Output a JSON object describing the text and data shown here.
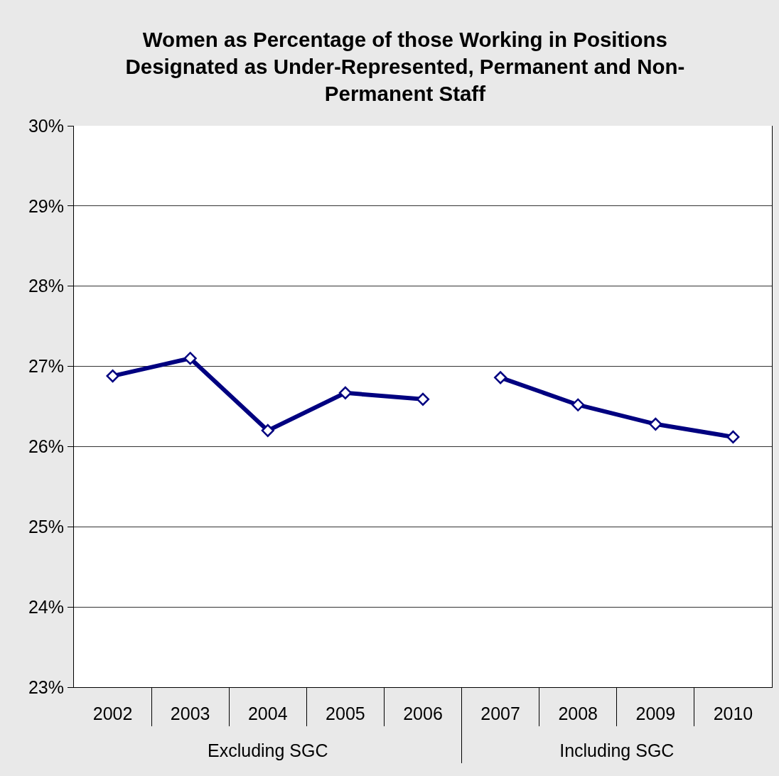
{
  "chart_data": {
    "type": "line",
    "title": "Women as Percentage of those Working in Positions Designated as Under-Represented, Permanent and Non-Permanent Staff",
    "categories": [
      "2002",
      "2003",
      "2004",
      "2005",
      "2006",
      "2007",
      "2008",
      "2009",
      "2010"
    ],
    "series": [
      {
        "color": "#000080",
        "values": [
          26.88,
          27.1,
          26.2,
          26.67,
          26.59,
          null,
          null,
          null,
          null
        ]
      },
      {
        "color": "#000080",
        "values": [
          null,
          null,
          null,
          null,
          null,
          26.86,
          26.52,
          26.28,
          26.12
        ]
      }
    ],
    "annotations": [
      "Excluding SGC",
      "Including SGC"
    ],
    "ylim": [
      23,
      30
    ],
    "yticks": [
      {
        "value": 23,
        "label": "23%"
      },
      {
        "value": 24,
        "label": "24%"
      },
      {
        "value": 25,
        "label": "25%"
      },
      {
        "value": 26,
        "label": "26%"
      },
      {
        "value": 27,
        "label": "27%"
      },
      {
        "value": 28,
        "label": "28%"
      },
      {
        "value": 29,
        "label": "29%"
      },
      {
        "value": 30,
        "label": "30%"
      }
    ],
    "grid": "y",
    "marker": "diamond",
    "line_style": "solid"
  }
}
